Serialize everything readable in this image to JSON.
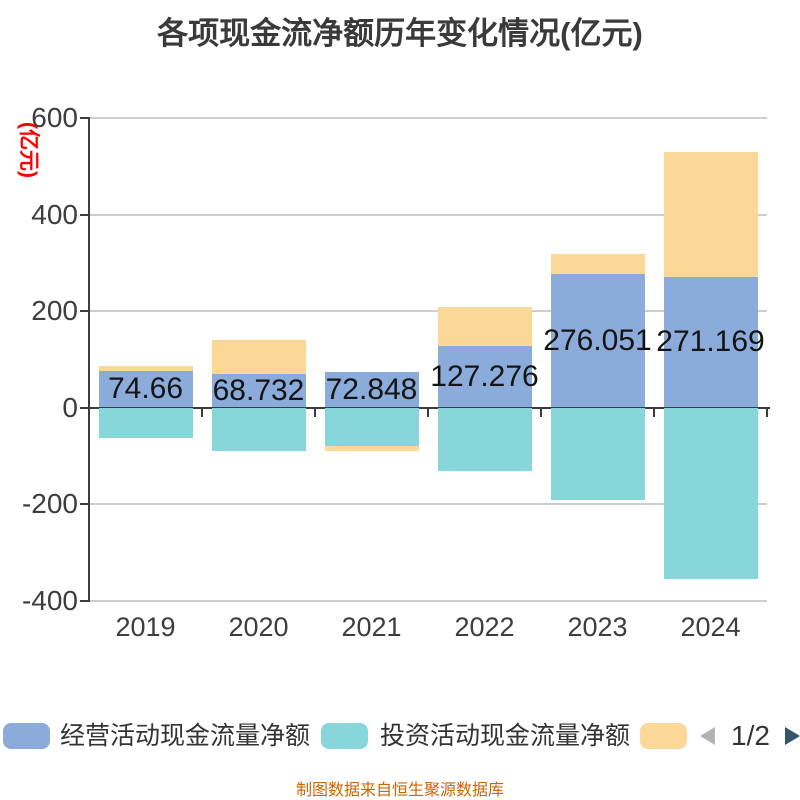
{
  "title": "各项现金流净额历年变化情况(亿元)",
  "y_axis": {
    "unit_label": "(亿元)",
    "unit_color": "#ff0000",
    "ticks": [
      "600",
      "400",
      "200",
      "0",
      "-200",
      "-400"
    ],
    "tick_values": [
      600,
      400,
      200,
      0,
      -200,
      -400
    ]
  },
  "chart_data": {
    "type": "bar",
    "stacked": true,
    "title": "各项现金流净额历年变化情况(亿元)",
    "ylabel": "(亿元)",
    "ylim": [
      -400,
      600
    ],
    "grid": true,
    "legend_position": "bottom",
    "categories": [
      "2019",
      "2020",
      "2021",
      "2022",
      "2023",
      "2024"
    ],
    "series": [
      {
        "name": "经营活动现金流量净额",
        "color": "#8babda",
        "values": [
          74.66,
          68.732,
          72.848,
          127.276,
          276.051,
          271.169
        ]
      },
      {
        "name": "投资活动现金流量净额",
        "color": "#87d6da",
        "values": [
          -63,
          -91,
          -80,
          -132,
          -191,
          -355
        ]
      },
      {
        "name": "",
        "color": "#fcd898",
        "values": [
          12,
          72,
          -10,
          81,
          42,
          259
        ]
      }
    ],
    "bar_labels": [
      "74.66",
      "68.732",
      "72.848",
      "127.276",
      "276.051",
      "271.169"
    ],
    "labeled_series_index": 0
  },
  "legend": {
    "items": [
      {
        "label": "经营活动现金流量净额",
        "color": "#8babda"
      },
      {
        "label": "投资活动现金流量净额",
        "color": "#87d6da"
      },
      {
        "label": "",
        "color": "#fcd898"
      }
    ],
    "pagination": {
      "current": "1/2",
      "prev_arrow_color": "#b3b3b3",
      "next_arrow_color": "#35536f"
    }
  },
  "footer": {
    "text": "制图数据来自恒生聚源数据库",
    "color": "#cc6600"
  },
  "style": {
    "axis_color": "#3c3c3c",
    "gridline_color": "#cdcdcd",
    "tick_label_color": "#3d3d3d",
    "bar_label_color": "#141414"
  }
}
